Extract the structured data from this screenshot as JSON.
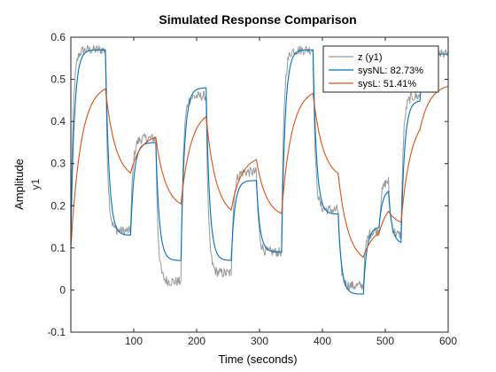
{
  "chart_data": {
    "type": "line",
    "title": "Simulated Response Comparison",
    "xlabel": "Time (seconds)",
    "ylabel": "Amplitude",
    "ylabel_sub": "y1",
    "xlim": [
      0,
      600
    ],
    "ylim": [
      -0.1,
      0.6
    ],
    "xticks": [
      100,
      200,
      300,
      400,
      500,
      600
    ],
    "yticks": [
      -0.1,
      0,
      0.1,
      0.2,
      0.3,
      0.4,
      0.5,
      0.6
    ],
    "grid": false,
    "legend_position": "top-right",
    "segments": [
      {
        "end": 55,
        "z": 0.57,
        "nl": 0.57,
        "l": 0.49
      },
      {
        "end": 95,
        "z": 0.14,
        "nl": 0.13,
        "l": 0.26
      },
      {
        "end": 135,
        "z": 0.36,
        "nl": 0.35,
        "l": 0.37
      },
      {
        "end": 175,
        "z": 0.02,
        "nl": 0.07,
        "l": 0.19
      },
      {
        "end": 215,
        "z": 0.46,
        "nl": 0.48,
        "l": 0.43
      },
      {
        "end": 255,
        "z": 0.04,
        "nl": 0.07,
        "l": 0.17
      },
      {
        "end": 295,
        "z": 0.28,
        "nl": 0.26,
        "l": 0.32
      },
      {
        "end": 335,
        "z": 0.09,
        "nl": 0.09,
        "l": 0.17
      },
      {
        "end": 385,
        "z": 0.57,
        "nl": 0.57,
        "l": 0.48
      },
      {
        "end": 425,
        "z": 0.19,
        "nl": 0.18,
        "l": 0.26
      },
      {
        "end": 465,
        "z": 0.01,
        "nl": -0.01,
        "l": 0.06
      },
      {
        "end": 490,
        "z": 0.14,
        "nl": 0.15,
        "l": 0.15
      },
      {
        "end": 505,
        "z": 0.26,
        "nl": 0.24,
        "l": 0.22
      },
      {
        "end": 525,
        "z": 0.13,
        "nl": 0.11,
        "l": 0.15
      },
      {
        "end": 555,
        "z": 0.46,
        "nl": 0.45,
        "l": 0.42
      },
      {
        "end": 600,
        "z": 0.56,
        "nl": 0.56,
        "l": 0.49
      }
    ],
    "series": [
      {
        "name": "z (y1)",
        "key": "z",
        "color": "#999999",
        "tau": 3.5,
        "noise": 0.012,
        "y0": 0.1
      },
      {
        "name": "sysNL: 82.73%",
        "key": "nl",
        "color": "#0072BD",
        "tau": 5.5,
        "noise": 0,
        "y0": 0.12
      },
      {
        "name": "sysL: 51.41%",
        "key": "l",
        "color": "#D95319",
        "tau": 16,
        "noise": 0,
        "y0": 0.1
      }
    ]
  }
}
